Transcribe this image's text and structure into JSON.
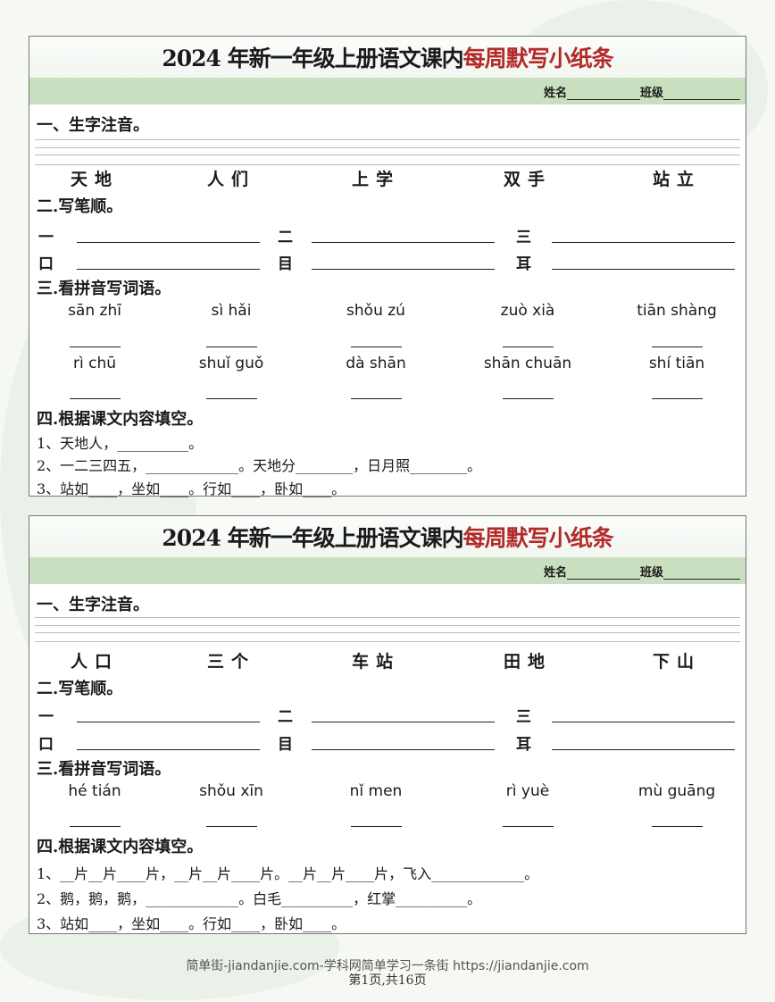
{
  "cards": [
    {
      "title_black": "2024 年新一年级上册语文课内",
      "title_red": "每周默写小纸条",
      "name_label": "姓名",
      "class_label": "班级",
      "sec1": "一、生字注音。",
      "words": [
        "天地",
        "人们",
        "上学",
        "双手",
        "站立"
      ],
      "sec2": "二.写笔顺。",
      "strokes": [
        [
          "一",
          "二",
          "三"
        ],
        [
          "口",
          "目",
          "耳"
        ]
      ],
      "sec3": "三.看拼音写词语。",
      "pinyin_rows": [
        [
          "sān zhī",
          "sì hǎi",
          "shǒu zú",
          "zuò xià",
          "tiān shàng"
        ],
        [
          "rì chū",
          "shuǐ guǒ",
          "dà shān",
          "shān chuān",
          "shí tiān"
        ]
      ],
      "sec4": "四.根据课文内容填空。",
      "fills": [
        "1、天地人，__________。",
        "2、一二三四五，_____________。天地分________，日月照________。",
        "3、站如____，坐如____。行如____，卧如____。"
      ]
    },
    {
      "title_black": "2024 年新一年级上册语文课内",
      "title_red": "每周默写小纸条",
      "name_label": "姓名",
      "class_label": "班级",
      "sec1": "一、生字注音。",
      "words": [
        "人口",
        "三个",
        "车站",
        "田地",
        "下山"
      ],
      "sec2": "二.写笔顺。",
      "strokes": [
        [
          "一",
          "二",
          "三"
        ],
        [
          "口",
          "目",
          "耳"
        ]
      ],
      "sec3": "三.看拼音写词语。",
      "pinyin_rows": [
        [
          "hé tián",
          "shǒu xīn",
          "nǐ  men",
          "rì  yuè",
          "mù guāng"
        ]
      ],
      "sec4": "四.根据课文内容填空。",
      "fills": [
        "1、__片__片____片，__片__片____片。__片__片____片，飞入_____________。",
        "2、鹅，鹅，鹅，_____________。白毛__________，红掌__________。",
        "3、站如____，坐如____。行如____，卧如____。"
      ]
    }
  ],
  "footer": {
    "line1": "简单街-jiandanjie.com-学科网简单学习一条街 https://jiandanjie.com",
    "page": "第1页,共16页"
  }
}
